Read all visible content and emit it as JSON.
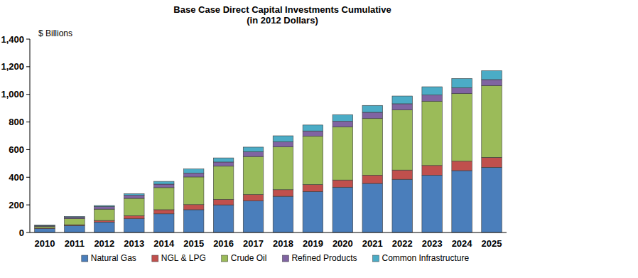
{
  "chart_data": {
    "type": "bar",
    "stacked": true,
    "title": "Base Case Direct Capital Investments Cumulative",
    "subtitle": "(in 2012 Dollars)",
    "y_label": "$ Billions",
    "categories": [
      "2010",
      "2011",
      "2012",
      "2013",
      "2014",
      "2015",
      "2016",
      "2017",
      "2018",
      "2019",
      "2020",
      "2021",
      "2022",
      "2023",
      "2024",
      "2025"
    ],
    "series": [
      {
        "name": "Natural Gas",
        "color": "#4a7ebb",
        "values": [
          28,
          50,
          75,
          100,
          135,
          165,
          200,
          230,
          262,
          297,
          328,
          355,
          385,
          415,
          448,
          472
        ]
      },
      {
        "name": "NGL & LPG",
        "color": "#c0504d",
        "values": [
          4,
          6,
          12,
          22,
          30,
          37,
          40,
          45,
          48,
          50,
          52,
          60,
          67,
          70,
          68,
          72
        ]
      },
      {
        "name": "Crude Oil",
        "color": "#9bbb59",
        "values": [
          12,
          45,
          82,
          125,
          160,
          200,
          240,
          275,
          310,
          350,
          385,
          410,
          435,
          465,
          490,
          520
        ]
      },
      {
        "name": "Refined Products",
        "color": "#8064a2",
        "values": [
          6,
          10,
          18,
          22,
          25,
          28,
          30,
          35,
          37,
          38,
          40,
          45,
          45,
          45,
          42,
          43
        ]
      },
      {
        "name": "Common Infrastructure",
        "color": "#4bacc6",
        "values": [
          4,
          5,
          8,
          12,
          20,
          30,
          30,
          33,
          43,
          43,
          48,
          50,
          56,
          60,
          67,
          65
        ]
      }
    ],
    "ylim": [
      0,
      1400
    ],
    "yticks": [
      0,
      200,
      400,
      600,
      800,
      {
        "value": 1000,
        "label": "1,000"
      },
      {
        "value": 1200,
        "label": "1,200"
      },
      {
        "value": 1400,
        "label": "1,400"
      }
    ],
    "grid": false,
    "legend": "bottom"
  }
}
